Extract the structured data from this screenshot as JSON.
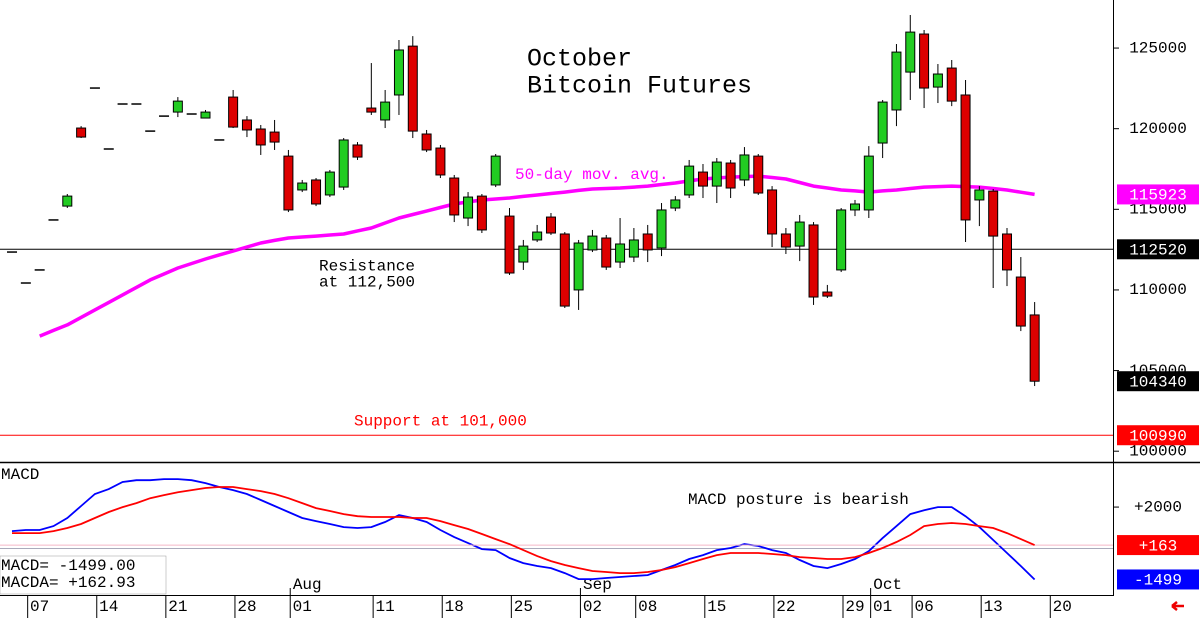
{
  "chart_data": [
    {
      "type": "candlestick",
      "title": [
        "October",
        "Bitcoin Futures"
      ],
      "xlim": [
        -0.87,
        79.67
      ],
      "xticks": [
        {
          "value": 2,
          "label": "07"
        },
        {
          "value": 7,
          "label": "14"
        },
        {
          "value": 12,
          "label": "21"
        },
        {
          "value": 17,
          "label": "28"
        },
        {
          "value": 21,
          "label": "01"
        },
        {
          "value": 27,
          "label": "11"
        },
        {
          "value": 32,
          "label": "18"
        },
        {
          "value": 37,
          "label": "25"
        },
        {
          "value": 42,
          "label": "02"
        },
        {
          "value": 46,
          "label": "08"
        },
        {
          "value": 51,
          "label": "15"
        },
        {
          "value": 56,
          "label": "22"
        },
        {
          "value": 61,
          "label": "29"
        },
        {
          "value": 63,
          "label": "01"
        },
        {
          "value": 66,
          "label": "06"
        },
        {
          "value": 71,
          "label": "13"
        },
        {
          "value": 76,
          "label": "20"
        }
      ],
      "month_ticks": [
        {
          "value": 21,
          "label": "Aug"
        },
        {
          "value": 42,
          "label": "Sep"
        },
        {
          "value": 63,
          "label": "Oct"
        }
      ],
      "ylim": [
        99330,
        127980
      ],
      "yticks": [
        100000,
        105000,
        110000,
        115000,
        120000,
        125000
      ],
      "up_color": "#22cc22",
      "down_color": "#dd0000",
      "open": [
        112350,
        110430,
        111240,
        114340,
        115200,
        120040,
        122520,
        118740,
        121530,
        121530,
        119850,
        120780,
        121030,
        120910,
        120660,
        119300,
        121960,
        120540,
        119980,
        119790,
        118300,
        116200,
        116820,
        115890,
        116380,
        118990,
        121280,
        120540,
        122090,
        125120,
        119670,
        118800,
        116940,
        114460,
        115820,
        116510,
        114580,
        111730,
        113100,
        114520,
        113470,
        110000,
        112480,
        113220,
        111730,
        112040,
        113470,
        112600,
        115080,
        115890,
        117310,
        116440,
        117870,
        116820,
        118300,
        116200,
        113470,
        112720,
        114030,
        109870,
        111240,
        114960,
        114960,
        119110,
        121160,
        123510,
        125870,
        122580,
        123760,
        122090,
        115580,
        116130,
        113470,
        110800,
        108450
      ],
      "high": [
        112350,
        110430,
        111240,
        114340,
        115950,
        120160,
        122520,
        118740,
        121530,
        121530,
        119850,
        120780,
        121960,
        120910,
        121160,
        119300,
        122400,
        120780,
        120230,
        120540,
        118680,
        116820,
        116940,
        117440,
        119420,
        119170,
        124070,
        122400,
        125500,
        125740,
        119920,
        118990,
        117130,
        116070,
        115950,
        118430,
        115080,
        113100,
        114030,
        114770,
        113590,
        113100,
        113720,
        113410,
        114460,
        113840,
        114030,
        115390,
        115820,
        118060,
        117810,
        118180,
        118060,
        118860,
        118430,
        116440,
        113840,
        114650,
        114210,
        110310,
        115080,
        115580,
        118920,
        121780,
        125250,
        127050,
        126120,
        124010,
        124260,
        123020,
        116440,
        116260,
        113840,
        112040,
        109250
      ],
      "low": [
        112350,
        110430,
        111240,
        114340,
        115080,
        119420,
        122520,
        118740,
        121530,
        121530,
        119850,
        120780,
        120720,
        120910,
        120660,
        119300,
        120040,
        119480,
        118370,
        118680,
        114830,
        116070,
        115200,
        115760,
        116200,
        118060,
        120850,
        120040,
        120850,
        119420,
        118550,
        116940,
        114210,
        113960,
        113530,
        116380,
        110930,
        111240,
        112970,
        113410,
        108880,
        108760,
        112350,
        111240,
        111360,
        111730,
        111730,
        112100,
        114890,
        115700,
        115700,
        115390,
        115700,
        116440,
        115890,
        112660,
        112230,
        111790,
        109070,
        109500,
        111110,
        114580,
        114460,
        118180,
        120160,
        121780,
        121280,
        121590,
        121400,
        112970,
        113960,
        110120,
        110240,
        107450,
        104040
      ],
      "close": [
        112350,
        110430,
        111240,
        114340,
        115820,
        119480,
        122520,
        118740,
        121530,
        121530,
        119850,
        120780,
        121710,
        120910,
        121030,
        119300,
        120100,
        119920,
        118990,
        119170,
        114960,
        116630,
        115330,
        117310,
        119300,
        118240,
        121030,
        121650,
        124880,
        119850,
        118680,
        117130,
        114650,
        115760,
        113720,
        118300,
        111050,
        112720,
        113590,
        113530,
        109000,
        112910,
        113340,
        111420,
        112850,
        113100,
        112480,
        114960,
        115580,
        117680,
        116440,
        117930,
        116320,
        118370,
        116010,
        113470,
        112660,
        114210,
        109560,
        109620,
        114960,
        115330,
        118300,
        121650,
        124750,
        125990,
        122520,
        123390,
        121710,
        114340,
        116200,
        113340,
        111240,
        107760,
        104340
      ],
      "series": [
        {
          "name": "50-day mov. avg.",
          "color": "#ff00ff",
          "values": [
            null,
            null,
            107140,
            107490,
            107830,
            108300,
            108760,
            109230,
            109690,
            110160,
            110620,
            110990,
            111360,
            111640,
            111920,
            112170,
            112410,
            112660,
            112910,
            113070,
            113220,
            113280,
            113340,
            113410,
            113470,
            113660,
            113840,
            114150,
            114460,
            114680,
            114890,
            115110,
            115330,
            115460,
            115580,
            115640,
            115700,
            115800,
            115890,
            115980,
            116070,
            116170,
            116260,
            116290,
            116320,
            116380,
            116440,
            116540,
            116630,
            116760,
            116880,
            116940,
            117000,
            117030,
            117060,
            116970,
            116880,
            116660,
            116440,
            116320,
            116200,
            116140,
            116070,
            116140,
            116200,
            116290,
            116380,
            116410,
            116440,
            116410,
            116380,
            116290,
            116200,
            116060,
            115923
          ]
        }
      ],
      "lines": [
        {
          "label": [
            "Resistance",
            "at 112,500"
          ],
          "value": 112520,
          "color": "#000000"
        },
        {
          "label": [
            "Support at 101,000"
          ],
          "value": 100990,
          "color": "#ff0000"
        }
      ]
    },
    {
      "type": "line",
      "title": "MACD",
      "ylim": [
        -2250,
        4130
      ],
      "yticks": [
        {
          "value": 2000,
          "label": "+2000"
        }
      ],
      "zero_line": true,
      "annotation": "MACD posture is bearish",
      "readout": [
        "MACD= -1499.00",
        "MACDA= +162.93"
      ],
      "series": [
        {
          "color": "#0000ff",
          "values": [
            840,
            890,
            890,
            1080,
            1470,
            2050,
            2630,
            2870,
            3210,
            3300,
            3300,
            3350,
            3350,
            3300,
            3160,
            2970,
            2820,
            2630,
            2340,
            2050,
            1760,
            1470,
            1320,
            1180,
            1030,
            990,
            1030,
            1280,
            1610,
            1470,
            1280,
            890,
            550,
            260,
            -30,
            -80,
            -460,
            -710,
            -850,
            -950,
            -1190,
            -1480,
            -1480,
            -1430,
            -1380,
            -1330,
            -1290,
            -1040,
            -800,
            -510,
            -320,
            -80,
            20,
            210,
            120,
            -80,
            -220,
            -560,
            -850,
            -950,
            -750,
            -510,
            -130,
            500,
            1080,
            1660,
            1850,
            2000,
            2000,
            1560,
            1030,
            410,
            -220,
            -850,
            -1499
          ]
        },
        {
          "color": "#ff0000",
          "last_label": "+163",
          "values": [
            740,
            740,
            740,
            840,
            990,
            1180,
            1470,
            1760,
            2000,
            2190,
            2430,
            2580,
            2720,
            2820,
            2920,
            2970,
            2970,
            2870,
            2770,
            2630,
            2430,
            2190,
            1950,
            1810,
            1660,
            1560,
            1520,
            1520,
            1520,
            1470,
            1470,
            1320,
            1130,
            940,
            700,
            450,
            210,
            -80,
            -370,
            -610,
            -800,
            -950,
            -1090,
            -1140,
            -1190,
            -1190,
            -1140,
            -1040,
            -900,
            -710,
            -510,
            -320,
            -220,
            -220,
            -220,
            -270,
            -320,
            -420,
            -460,
            -510,
            -510,
            -420,
            -220,
            20,
            310,
            650,
            1080,
            1180,
            1230,
            1180,
            1080,
            990,
            740,
            450,
            163
          ]
        }
      ]
    }
  ]
}
